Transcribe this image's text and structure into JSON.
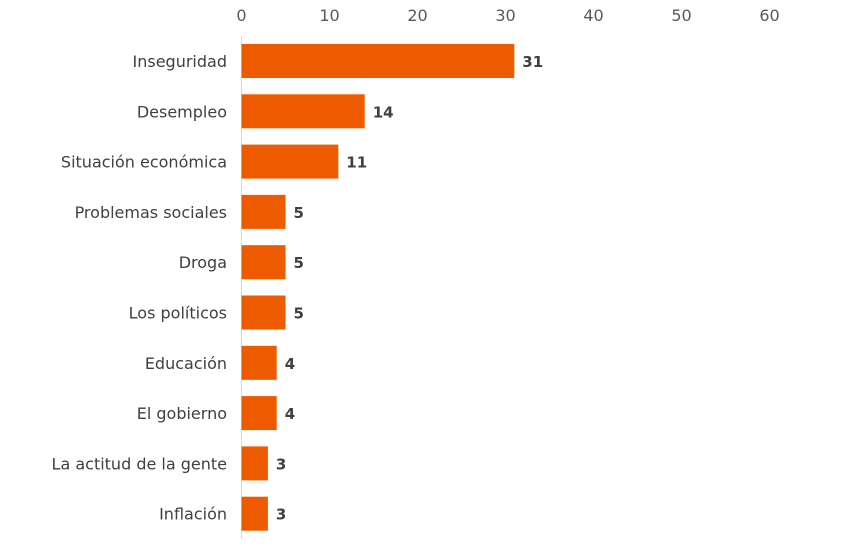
{
  "chart_data": {
    "type": "bar",
    "orientation": "horizontal",
    "categories": [
      "Inseguridad",
      "Desempleo",
      "Situación económica",
      "Problemas sociales",
      "Droga",
      "Los políticos",
      "Educación",
      "El gobierno",
      "La actitud de la gente",
      "Inflación"
    ],
    "values": [
      31,
      14,
      11,
      5,
      5,
      5,
      4,
      4,
      3,
      3
    ],
    "xlim": [
      0,
      60
    ],
    "xticks": [
      0,
      10,
      20,
      30,
      40,
      50,
      60
    ],
    "axis_position": "top",
    "grid": false,
    "legend": "none",
    "colors": {
      "bar": "#EE5A00",
      "axis": "#d9d9d9"
    }
  }
}
